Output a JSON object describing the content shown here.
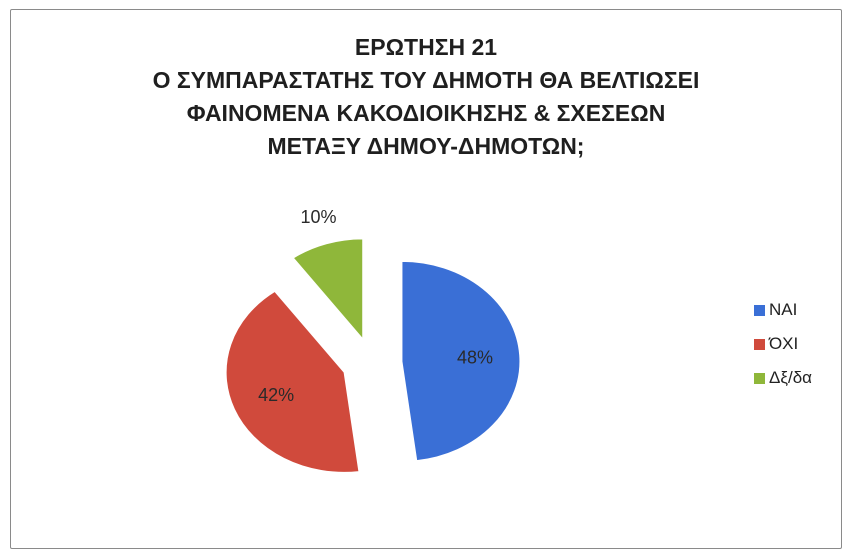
{
  "chart_data": {
    "type": "pie",
    "title_lines": [
      "ΕΡΩΤΗΣΗ 21",
      "Ο ΣΥΜΠΑΡΑΣΤΑΤΗΣ ΤΟΥ ΔΗΜΟΤΗ ΘΑ ΒΕΛΤΙΩΣΕΙ",
      "ΦΑΙΝΟΜΕΝΑ ΚΑΚΟΔΙΟΙΚΗΣΗΣ & ΣΧΕΣΕΩΝ",
      "ΜΕΤΑΞΥ ΔΗΜΟΥ-ΔΗΜΟΤΩΝ;"
    ],
    "categories": [
      "ΝΑΙ",
      "ΌΧΙ",
      "Δξ/δα"
    ],
    "values": [
      48,
      42,
      10
    ],
    "data_labels": [
      "48%",
      "42%",
      "10%"
    ],
    "colors": [
      "#3a6fd6",
      "#d04a3c",
      "#8fb73a"
    ],
    "exploded": true,
    "legend_position": "right"
  }
}
